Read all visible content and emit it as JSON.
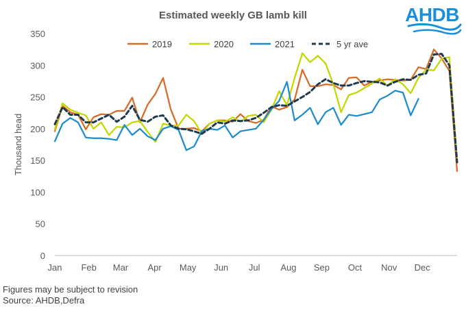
{
  "logo": {
    "text": "AHDB",
    "color": "#1b8fd8"
  },
  "footnotes": {
    "revision": "Figures may be subject to revision",
    "source": "Source: AHDB,Defra"
  },
  "chart_data": {
    "type": "line",
    "title": "Estimated weekly GB lamb kill",
    "ylabel": "Thousand  head",
    "xlabel": "",
    "ylim": [
      0,
      350
    ],
    "yticks": [
      0,
      50,
      100,
      150,
      200,
      250,
      300,
      350
    ],
    "xlim": [
      1,
      53
    ],
    "xtick_labels": [
      "Jan",
      "Feb",
      "Mar",
      "Apr",
      "May",
      "Jun",
      "Jul",
      "Aug",
      "Sep",
      "Oct",
      "Nov",
      "Dec"
    ],
    "xtick_weeks": [
      1,
      5.4,
      9.5,
      13.9,
      18.2,
      22.5,
      26.8,
      31.2,
      35.5,
      39.8,
      44.2,
      48.5
    ],
    "grid": false,
    "legend": "top",
    "series": [
      {
        "name": "2019",
        "color": "#d86a26",
        "dash": "",
        "values": [
          196,
          236,
          226,
          222,
          199,
          218,
          223,
          222,
          228,
          228,
          249,
          210,
          238,
          255,
          280,
          230,
          200,
          200,
          201,
          196,
          208,
          213,
          213,
          211,
          223,
          212,
          209,
          214,
          235,
          230,
          234,
          246,
          293,
          267,
          267,
          270,
          269,
          262,
          280,
          281,
          268,
          274,
          276,
          278,
          277,
          276,
          277,
          297,
          294,
          325,
          311,
          291,
          133
        ]
      },
      {
        "name": "2020",
        "color": "#c2d600",
        "dash": "",
        "values": [
          199,
          240,
          230,
          225,
          221,
          200,
          210,
          190,
          203,
          202,
          210,
          212,
          195,
          179,
          208,
          205,
          205,
          222,
          212,
          192,
          208,
          213,
          211,
          218,
          211,
          220,
          222,
          210,
          230,
          259,
          237,
          280,
          319,
          305,
          315,
          303,
          270,
          226,
          253,
          257,
          264,
          271,
          279,
          268,
          278,
          270,
          256,
          280,
          293,
          292,
          310,
          313,
          150
        ]
      },
      {
        "name": "2021",
        "color": "#1c8ccc",
        "dash": "",
        "values": [
          180,
          208,
          217,
          210,
          186,
          185,
          185,
          184,
          182,
          206,
          190,
          200,
          188,
          182,
          200,
          204,
          198,
          166,
          172,
          196,
          200,
          198,
          205,
          186,
          196,
          198,
          200,
          214,
          231,
          244,
          274,
          213,
          222,
          233,
          207,
          226,
          233,
          206,
          222,
          220,
          223,
          226,
          246,
          252,
          260,
          257,
          221,
          247
        ]
      },
      {
        "name": "5 yr ave",
        "color": "#1e3a4c",
        "dash": "6,4",
        "values": [
          207,
          234,
          222,
          222,
          210,
          210,
          216,
          222,
          211,
          219,
          236,
          214,
          211,
          219,
          221,
          205,
          200,
          199,
          196,
          192,
          200,
          210,
          208,
          213,
          212,
          213,
          217,
          225,
          234,
          237,
          236,
          243,
          250,
          258,
          270,
          278,
          272,
          268,
          268,
          272,
          275,
          274,
          273,
          268,
          274,
          278,
          277,
          285,
          287,
          317,
          318,
          300,
          147
        ]
      }
    ]
  }
}
